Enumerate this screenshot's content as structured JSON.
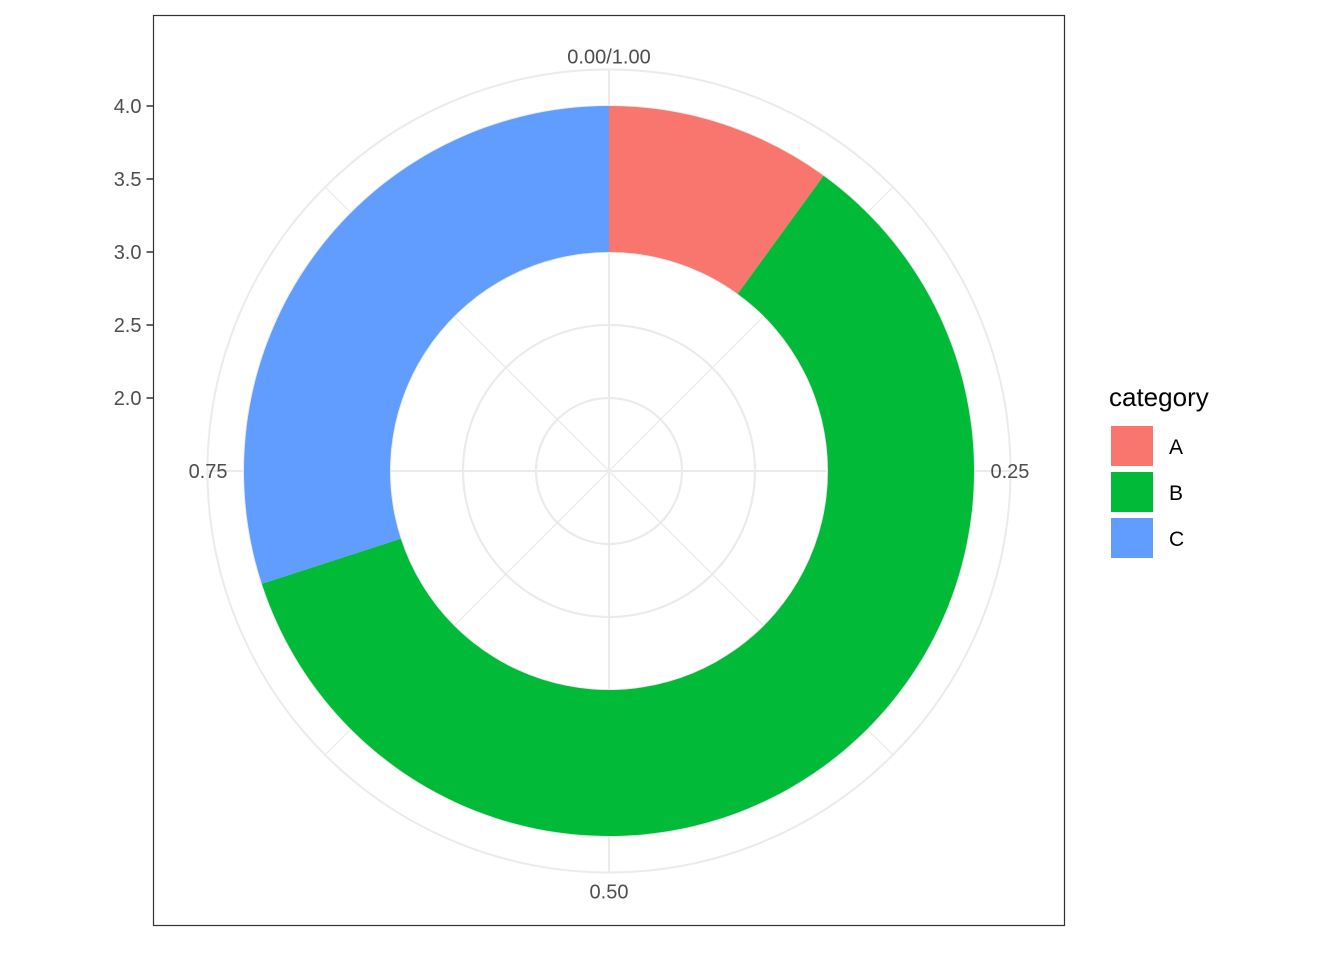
{
  "chart_data": {
    "type": "pie",
    "subtype": "donut",
    "coordinate": "polar",
    "categories": [
      "A",
      "B",
      "C"
    ],
    "values": [
      0.1,
      0.6,
      0.3
    ],
    "colors": {
      "A": "#F8766D",
      "B": "#00BA38",
      "C": "#619CFF"
    },
    "theta_ticks": [
      "0.00/1.00",
      "0.25",
      "0.50",
      "0.75"
    ],
    "theta_tick_values": [
      0,
      0.25,
      0.5,
      0.75
    ],
    "r_ticks": [
      "2.0",
      "2.5",
      "3.0",
      "3.5",
      "4.0"
    ],
    "r_tick_values": [
      2.0,
      2.5,
      3.0,
      3.5,
      4.0
    ],
    "r_range": [
      1.5,
      4.0
    ],
    "ring_r": [
      3.0,
      4.0
    ],
    "r_gridlines": [
      2.0,
      2.5,
      3.0,
      3.5,
      4.0,
      4.25
    ],
    "grid": true,
    "legend": {
      "title": "category",
      "position": "right",
      "items": [
        {
          "label": "A",
          "color": "#F8766D"
        },
        {
          "label": "B",
          "color": "#00BA38"
        },
        {
          "label": "C",
          "color": "#619CFF"
        }
      ]
    }
  }
}
